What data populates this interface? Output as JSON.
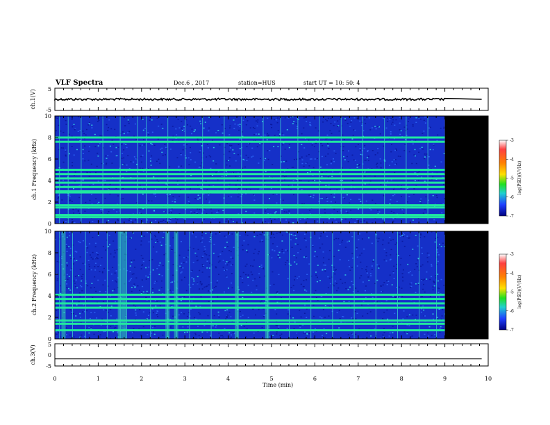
{
  "header": {
    "title": "VLF Spectra",
    "date": "Dec.6 , 2017",
    "station": "station=HUS",
    "start_time": "start UT = 10: 50: 4"
  },
  "colors": {
    "background": "#000000",
    "spectral_blue": "#1030d8",
    "spectral_green": "#20e0a0"
  },
  "colorbar": {
    "label": "log(PSD)(V²/Hz)",
    "ticks": [
      "-3",
      "-4",
      "-5",
      "-6",
      "-7"
    ]
  },
  "chart_data": [
    {
      "type": "line",
      "name": "ch1_waveform",
      "ylabel": "ch.1(V)",
      "ylim": [
        -5,
        5
      ],
      "yticks": [
        "5",
        "-5"
      ],
      "series": [
        {
          "name": "",
          "x": [
            0,
            9.0,
            9.0,
            9.85
          ],
          "y": [
            0,
            0,
            0,
            0
          ],
          "note_noise": "low-amplitude noise"
        }
      ]
    },
    {
      "type": "heatmap",
      "name": "ch1_spectrogram",
      "ylabel": "ch.1 Frequency (kHz)",
      "xlim": [
        0,
        9.85
      ],
      "ylim": [
        0,
        10
      ],
      "yticks": [
        "0",
        "2",
        "4",
        "6",
        "8",
        "10"
      ],
      "data_end_min": 9.0,
      "bands_khz": [
        0.6,
        0.8,
        1.5,
        1.7,
        2.9,
        3.0,
        3.4,
        3.8,
        4.2,
        4.6,
        5.0,
        7.6,
        8.0
      ],
      "vertical_lines_min": [
        0.1,
        0.3,
        0.6,
        1.1,
        1.5,
        1.9,
        2.1,
        2.6,
        3.0,
        3.4,
        3.9,
        4.3,
        4.8,
        5.2,
        5.6,
        6.1,
        6.6,
        7.1,
        7.6,
        8.1,
        8.6
      ]
    },
    {
      "type": "heatmap",
      "name": "ch2_spectrogram",
      "ylabel": "ch.2 Frequency (kHz)",
      "xlim": [
        0,
        9.85
      ],
      "ylim": [
        0,
        10
      ],
      "yticks": [
        "0",
        "2",
        "4",
        "6",
        "8",
        "10"
      ],
      "data_end_min": 9.0,
      "bands_khz": [
        0.8,
        1.4,
        1.7,
        2.9,
        3.3,
        3.7,
        4.1
      ],
      "bursts_min": [
        0.2,
        1.5,
        1.6,
        2.6,
        2.8,
        4.2,
        4.9
      ],
      "vertical_lines_min": [
        0.1,
        0.4,
        0.7,
        1.2,
        1.5,
        1.65,
        2.2,
        2.6,
        2.8,
        3.1,
        3.6,
        4.2,
        4.9,
        5.4,
        5.9,
        6.4,
        6.9,
        7.4,
        7.9,
        8.4,
        8.8
      ]
    },
    {
      "type": "line",
      "name": "ch3_waveform",
      "ylabel": "ch.3(V)",
      "ylim": [
        -5,
        5
      ],
      "yticks": [
        "5",
        "0",
        "-5"
      ],
      "series": [
        {
          "name": "",
          "x": [
            0,
            9.85
          ],
          "y": [
            -1.8,
            -1.8
          ]
        }
      ]
    }
  ],
  "xaxis": {
    "label": "Time (min)",
    "ticks": [
      "0",
      "1",
      "2",
      "3",
      "4",
      "5",
      "6",
      "7",
      "8",
      "9",
      "10"
    ]
  }
}
